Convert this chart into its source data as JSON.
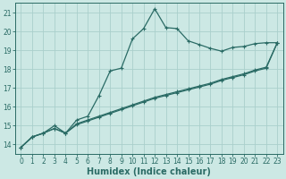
{
  "xlabel": "Humidex (Indice chaleur)",
  "bg_color": "#cce8e4",
  "grid_color": "#aacfcc",
  "line_color": "#2a6b65",
  "xlim": [
    -0.5,
    23.5
  ],
  "ylim": [
    13.5,
    21.5
  ],
  "yticks": [
    14,
    15,
    16,
    17,
    18,
    19,
    20,
    21
  ],
  "xticks": [
    0,
    1,
    2,
    3,
    4,
    5,
    6,
    7,
    8,
    9,
    10,
    11,
    12,
    13,
    14,
    15,
    16,
    17,
    18,
    19,
    20,
    21,
    22,
    23
  ],
  "line1_x": [
    0,
    1,
    2,
    3,
    4,
    5,
    6,
    7,
    8,
    9,
    10,
    11,
    12,
    13,
    14,
    15,
    16,
    17,
    18,
    19,
    20,
    21,
    22,
    23
  ],
  "line1_y": [
    13.85,
    14.4,
    14.6,
    14.85,
    14.6,
    15.05,
    15.25,
    15.45,
    15.65,
    15.85,
    16.05,
    16.25,
    16.45,
    16.6,
    16.75,
    16.9,
    17.05,
    17.2,
    17.4,
    17.55,
    17.7,
    17.9,
    18.05,
    19.4
  ],
  "line2_x": [
    0,
    1,
    2,
    3,
    4,
    5,
    6,
    7,
    8,
    9,
    10,
    11,
    12,
    13,
    14,
    15,
    16,
    17,
    18,
    19,
    20,
    21,
    22,
    23
  ],
  "line2_y": [
    13.85,
    14.4,
    14.6,
    15.0,
    14.6,
    15.3,
    15.5,
    16.6,
    17.9,
    18.05,
    19.6,
    20.15,
    21.2,
    20.2,
    20.15,
    19.5,
    19.3,
    19.1,
    18.95,
    19.15,
    19.2,
    19.35,
    19.4,
    19.4
  ],
  "line3_x": [
    0,
    1,
    2,
    3,
    4,
    5,
    6,
    7,
    8,
    9,
    10,
    11,
    12,
    13,
    14,
    15,
    16,
    17,
    18,
    19,
    20,
    21,
    22,
    23
  ],
  "line3_y": [
    13.85,
    14.4,
    14.6,
    14.85,
    14.6,
    15.1,
    15.3,
    15.5,
    15.7,
    15.9,
    16.1,
    16.3,
    16.5,
    16.65,
    16.8,
    16.95,
    17.1,
    17.25,
    17.45,
    17.6,
    17.75,
    17.95,
    18.1,
    19.4
  ]
}
